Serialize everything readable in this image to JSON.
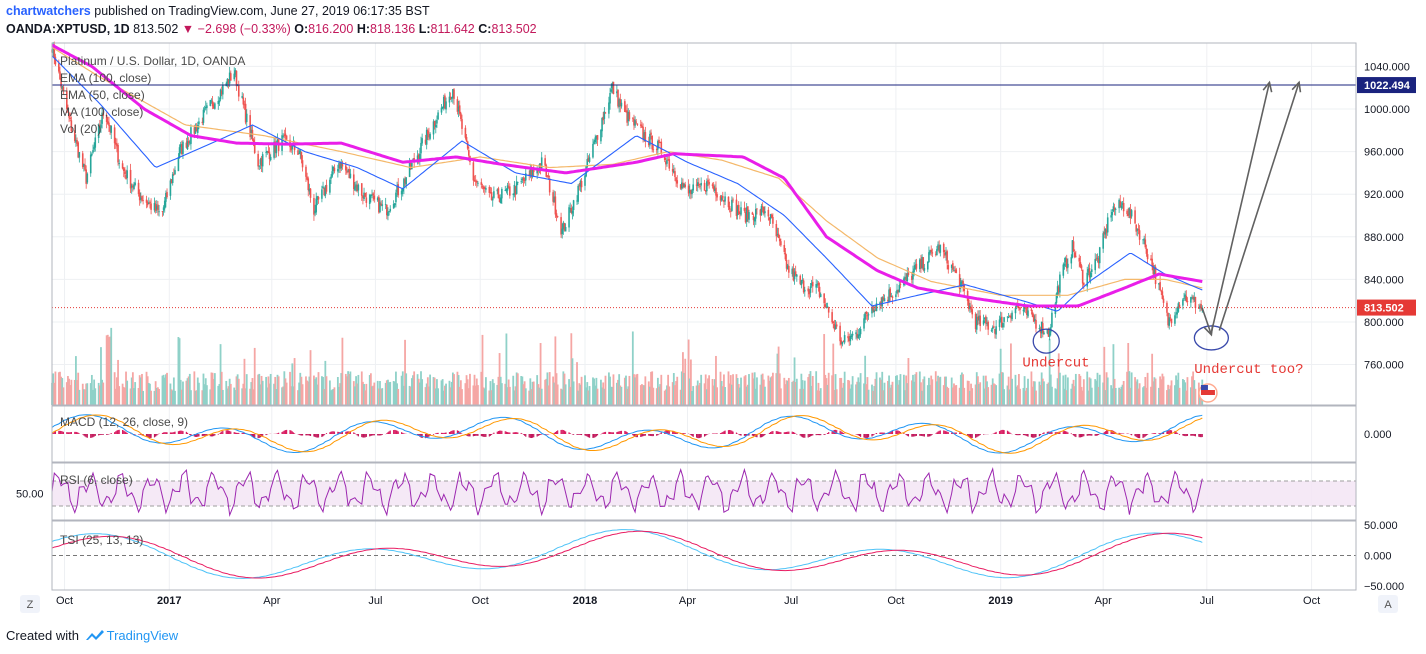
{
  "header": {
    "user": "chartwatchers",
    "published": "published on TradingView.com, June 27, 2019 06:17:35 BST",
    "symbol": "OANDA:XPTUSD, 1D",
    "last": "813.502",
    "change": "−2.698 (−0.33%)",
    "open_label": "O:",
    "open": "816.200",
    "high_label": "H:",
    "high": "818.136",
    "low_label": "L:",
    "low": "811.642",
    "close_label": "C:",
    "close": "813.502"
  },
  "footer": {
    "created_with": "Created with",
    "brand": "TradingView"
  },
  "colors": {
    "up": "#26a69a",
    "down": "#ef5350",
    "ema100": "#f4b86a",
    "ema50": "#2962ff",
    "ma100": "#e91ee9",
    "macd": "#2196f3",
    "signal": "#ff9800",
    "rsi": "#9c27b0",
    "tsi": "#4fc3f7",
    "tsi_signal": "#e91e63",
    "annotation": "#e53935"
  },
  "chart_data": [
    {
      "type": "candlestick",
      "title": "Platinum / U.S. Dollar, 1D, OANDA",
      "legend": [
        "EMA (100, close)",
        "EMA (50, close)",
        "MA (100, close)",
        "Vol (20)"
      ],
      "x_ticks": [
        "Oct",
        "2017",
        "Apr",
        "Jul",
        "Oct",
        "2018",
        "Apr",
        "Jul",
        "Oct",
        "2019",
        "Apr",
        "Jul",
        "Oct"
      ],
      "y_ticks": [
        1040,
        1000,
        960,
        920,
        880,
        840,
        800,
        760
      ],
      "y_range": [
        722,
        1062
      ],
      "price_path": [
        [
          "2016-09-20",
          1060
        ],
        [
          "2016-10-05",
          990
        ],
        [
          "2016-10-20",
          935
        ],
        [
          "2016-11-05",
          1000
        ],
        [
          "2016-11-20",
          945
        ],
        [
          "2016-12-05",
          920
        ],
        [
          "2016-12-25",
          900
        ],
        [
          "2017-01-10",
          960
        ],
        [
          "2017-02-01",
          995
        ],
        [
          "2017-02-27",
          1035
        ],
        [
          "2017-03-10",
          990
        ],
        [
          "2017-03-20",
          950
        ],
        [
          "2017-04-10",
          970
        ],
        [
          "2017-04-25",
          960
        ],
        [
          "2017-05-08",
          905
        ],
        [
          "2017-05-30",
          950
        ],
        [
          "2017-06-20",
          920
        ],
        [
          "2017-07-10",
          905
        ],
        [
          "2017-07-25",
          930
        ],
        [
          "2017-08-20",
          985
        ],
        [
          "2017-09-07",
          1020
        ],
        [
          "2017-09-25",
          935
        ],
        [
          "2017-10-10",
          915
        ],
        [
          "2017-11-01",
          925
        ],
        [
          "2017-11-25",
          950
        ],
        [
          "2017-12-12",
          885
        ],
        [
          "2018-01-01",
          940
        ],
        [
          "2018-01-25",
          1020
        ],
        [
          "2018-02-05",
          995
        ],
        [
          "2018-02-22",
          975
        ],
        [
          "2018-03-10",
          960
        ],
        [
          "2018-04-01",
          920
        ],
        [
          "2018-04-20",
          930
        ],
        [
          "2018-05-20",
          900
        ],
        [
          "2018-06-10",
          905
        ],
        [
          "2018-06-28",
          850
        ],
        [
          "2018-07-10",
          835
        ],
        [
          "2018-07-25",
          830
        ],
        [
          "2018-08-15",
          780
        ],
        [
          "2018-08-28",
          790
        ],
        [
          "2018-09-10",
          815
        ],
        [
          "2018-10-01",
          830
        ],
        [
          "2018-10-20",
          850
        ],
        [
          "2018-11-08",
          870
        ],
        [
          "2018-11-25",
          840
        ],
        [
          "2018-12-10",
          800
        ],
        [
          "2018-12-28",
          795
        ],
        [
          "2019-01-15",
          815
        ],
        [
          "2019-02-01",
          800
        ],
        [
          "2019-02-12",
          790
        ],
        [
          "2019-02-22",
          840
        ],
        [
          "2019-03-05",
          870
        ],
        [
          "2019-03-15",
          840
        ],
        [
          "2019-03-28",
          860
        ],
        [
          "2019-04-08",
          905
        ],
        [
          "2019-04-20",
          910
        ],
        [
          "2019-05-05",
          880
        ],
        [
          "2019-05-15",
          850
        ],
        [
          "2019-05-28",
          800
        ],
        [
          "2019-06-10",
          825
        ],
        [
          "2019-06-27",
          813.5
        ]
      ],
      "ema100": [
        [
          "2016-09-20",
          1058
        ],
        [
          "2016-11-01",
          1030
        ],
        [
          "2017-01-15",
          985
        ],
        [
          "2017-03-25",
          975
        ],
        [
          "2017-06-01",
          960
        ],
        [
          "2017-08-01",
          945
        ],
        [
          "2017-10-01",
          955
        ],
        [
          "2017-12-01",
          945
        ],
        [
          "2018-01-25",
          948
        ],
        [
          "2018-03-15",
          960
        ],
        [
          "2018-05-01",
          952
        ],
        [
          "2018-06-20",
          935
        ],
        [
          "2018-08-01",
          895
        ],
        [
          "2018-09-15",
          860
        ],
        [
          "2018-11-01",
          838
        ],
        [
          "2019-01-01",
          825
        ],
        [
          "2019-03-01",
          825
        ],
        [
          "2019-04-20",
          840
        ],
        [
          "2019-05-25",
          840
        ],
        [
          "2019-06-27",
          832
        ]
      ],
      "ema50": [
        [
          "2016-09-20",
          1050
        ],
        [
          "2016-11-01",
          1005
        ],
        [
          "2016-12-20",
          945
        ],
        [
          "2017-02-01",
          965
        ],
        [
          "2017-03-15",
          985
        ],
        [
          "2017-04-30",
          960
        ],
        [
          "2017-06-15",
          945
        ],
        [
          "2017-07-25",
          925
        ],
        [
          "2017-09-15",
          970
        ],
        [
          "2017-11-01",
          940
        ],
        [
          "2017-12-20",
          930
        ],
        [
          "2018-02-15",
          975
        ],
        [
          "2018-04-01",
          950
        ],
        [
          "2018-05-15",
          930
        ],
        [
          "2018-06-25",
          900
        ],
        [
          "2018-08-01",
          860
        ],
        [
          "2018-09-10",
          815
        ],
        [
          "2018-10-20",
          825
        ],
        [
          "2018-12-01",
          835
        ],
        [
          "2019-01-20",
          820
        ],
        [
          "2019-02-20",
          810
        ],
        [
          "2019-03-20",
          838
        ],
        [
          "2019-04-25",
          865
        ],
        [
          "2019-05-25",
          845
        ],
        [
          "2019-06-27",
          830
        ]
      ],
      "ma100": [
        [
          "2016-09-20",
          1060
        ],
        [
          "2016-10-25",
          1040
        ],
        [
          "2016-12-10",
          1000
        ],
        [
          "2017-01-20",
          975
        ],
        [
          "2017-03-01",
          968
        ],
        [
          "2017-04-15",
          967
        ],
        [
          "2017-06-01",
          968
        ],
        [
          "2017-07-25",
          950
        ],
        [
          "2017-09-10",
          955
        ],
        [
          "2017-10-20",
          948
        ],
        [
          "2017-12-15",
          940
        ],
        [
          "2018-02-15",
          950
        ],
        [
          "2018-03-20",
          958
        ],
        [
          "2018-05-20",
          955
        ],
        [
          "2018-06-25",
          935
        ],
        [
          "2018-08-01",
          880
        ],
        [
          "2018-09-15",
          848
        ],
        [
          "2018-10-20",
          832
        ],
        [
          "2018-12-10",
          822
        ],
        [
          "2019-01-25",
          815
        ],
        [
          "2019-03-10",
          815
        ],
        [
          "2019-04-20",
          832
        ],
        [
          "2019-05-20",
          845
        ],
        [
          "2019-06-27",
          838
        ]
      ],
      "annotations": [
        {
          "type": "price-line",
          "price": 1022.494,
          "label": "1022.494"
        },
        {
          "type": "last-price",
          "price": 813.502,
          "label": "813.502"
        },
        {
          "type": "ellipse",
          "date": "2019-02-10",
          "price": 782
        },
        {
          "type": "ellipse",
          "date": "2019-07-05",
          "price": 785
        },
        {
          "type": "text",
          "text": "Undercut",
          "date": "2019-01-20",
          "price": 758
        },
        {
          "type": "text",
          "text": "Undercut too?",
          "date": "2019-06-20",
          "price": 752
        },
        {
          "type": "arrow",
          "from": [
            "2019-06-27",
            813
          ],
          "to": [
            "2019-07-05",
            788
          ]
        },
        {
          "type": "arrow",
          "from": [
            "2019-07-05",
            790
          ],
          "to": [
            "2019-08-25",
            1025
          ]
        },
        {
          "type": "arrow",
          "from": [
            "2019-07-12",
            792
          ],
          "to": [
            "2019-09-20",
            1025
          ]
        }
      ]
    },
    {
      "type": "line",
      "title": "MACD (12, 26, close, 9)",
      "y_ticks": [
        0
      ]
    },
    {
      "type": "line",
      "title": "RSI (6, close)",
      "y_ticks": [
        50
      ]
    },
    {
      "type": "line",
      "title": "TSI (25, 13, 13)",
      "y_ticks": [
        50,
        0,
        -50
      ]
    }
  ]
}
